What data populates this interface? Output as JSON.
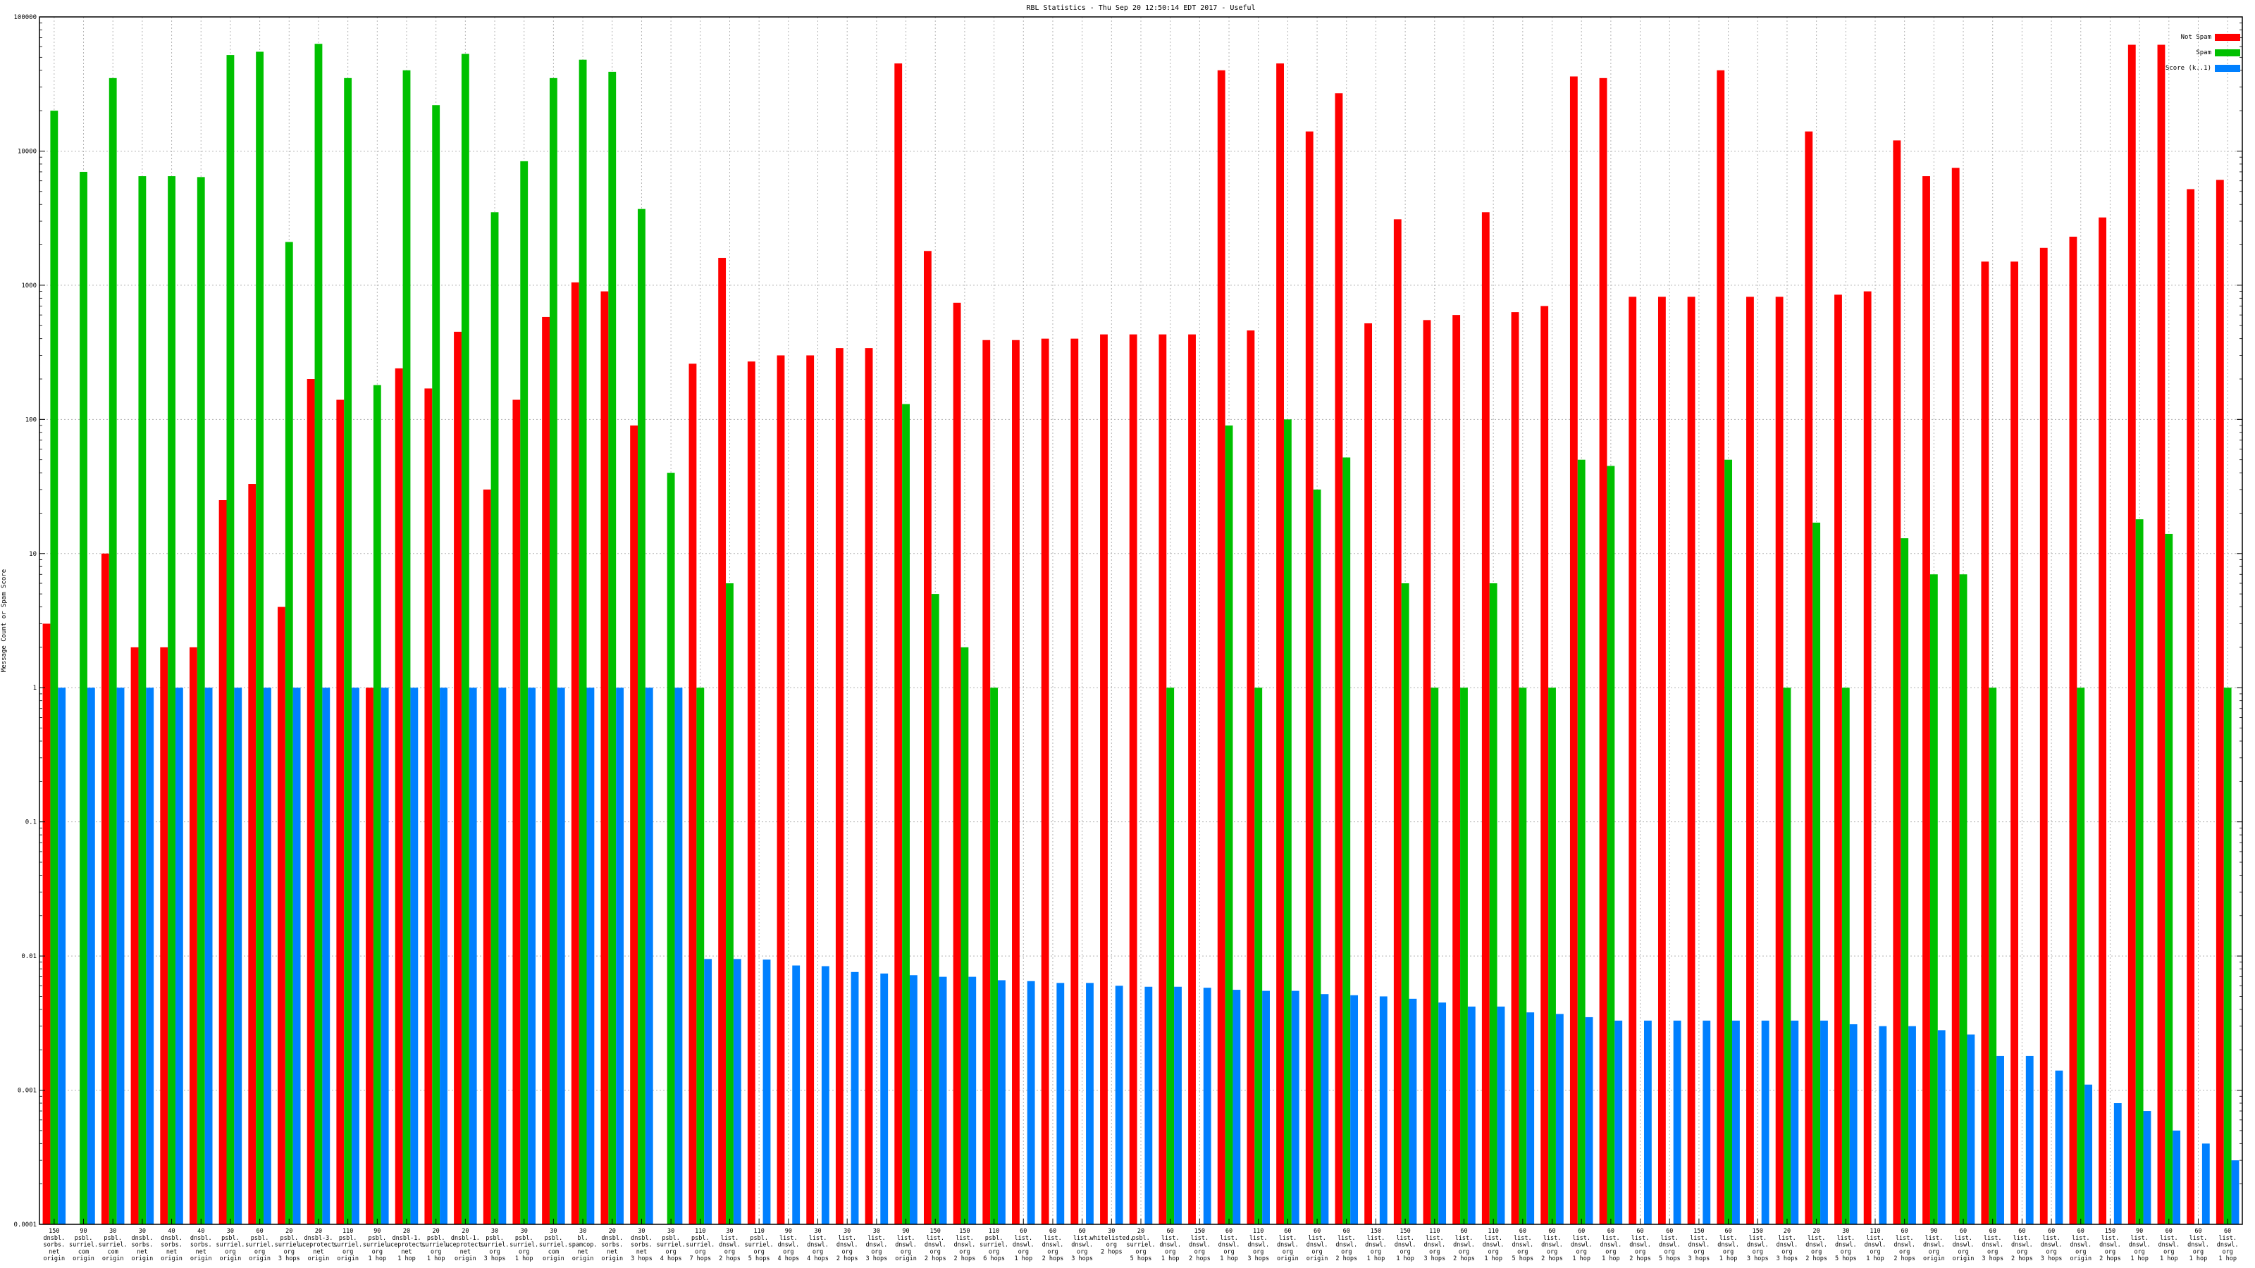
{
  "chart_data": {
    "type": "bar",
    "title": "RBL Statistics - Thu Sep 20 12:50:14 EDT 2017 - Useful",
    "ylabel": "Message Count or Spam Score",
    "xlabel": "",
    "yscale": "log",
    "ylim": [
      0.0001,
      100000
    ],
    "yticks": [
      "0.0001",
      "0.001",
      "0.01",
      "0.1",
      "1",
      "10",
      "100",
      "1000",
      "10000",
      "100000"
    ],
    "grid": true,
    "legend_position": "top-right",
    "colors": {
      "not_spam": "#ff0000",
      "spam": "#00c000",
      "score": "#0080ff"
    },
    "series": [
      {
        "name": "Not Spam",
        "values": [
          3,
          null,
          10,
          2,
          2,
          2,
          25,
          33,
          4,
          200,
          140,
          1,
          240,
          170,
          450,
          30,
          140,
          580,
          1050,
          900,
          90,
          null,
          260,
          1600,
          270,
          300,
          300,
          340,
          340,
          45000,
          1800,
          740,
          390,
          390,
          400,
          400,
          430,
          430,
          430,
          430,
          40000,
          460,
          45000,
          14000,
          27000,
          520,
          3100,
          550,
          600,
          3500,
          630,
          700,
          36000,
          35000,
          820,
          820,
          820,
          40000,
          820,
          820,
          14000,
          850,
          900,
          12000,
          6500,
          7500,
          1500,
          1500,
          1900,
          2300,
          3200,
          62000,
          62000,
          5200,
          6100
        ]
      },
      {
        "name": "Spam",
        "values": [
          20000,
          7000,
          35000,
          6500,
          6500,
          6400,
          52000,
          55000,
          2100,
          63000,
          35000,
          180,
          40000,
          22000,
          53000,
          3500,
          8400,
          35000,
          48000,
          39000,
          3700,
          40,
          1,
          6,
          null,
          null,
          null,
          null,
          null,
          130,
          5,
          2,
          1,
          null,
          null,
          null,
          null,
          null,
          1,
          null,
          90,
          1,
          100,
          30,
          52,
          null,
          6,
          1,
          1,
          6,
          1,
          1,
          50,
          45,
          null,
          null,
          null,
          50,
          null,
          1,
          17,
          1,
          null,
          13,
          7,
          7,
          1,
          null,
          null,
          1,
          null,
          18,
          14,
          null,
          1
        ]
      },
      {
        "name": "Score (k..1)",
        "values": [
          1,
          1,
          1,
          1,
          1,
          1,
          1,
          1,
          1,
          1,
          1,
          1,
          1,
          1,
          1,
          1,
          1,
          1,
          1,
          1,
          1,
          1,
          0.0095,
          0.0095,
          0.0094,
          0.0085,
          0.0084,
          0.0076,
          0.0074,
          0.0072,
          0.007,
          0.007,
          0.0066,
          0.0065,
          0.0063,
          0.0063,
          0.006,
          0.0059,
          0.0059,
          0.0058,
          0.0056,
          0.0055,
          0.0055,
          0.0052,
          0.0051,
          0.005,
          0.0048,
          0.0045,
          0.0042,
          0.0042,
          0.0038,
          0.0037,
          0.0035,
          0.0033,
          0.0033,
          0.0033,
          0.0033,
          0.0033,
          0.0033,
          0.0033,
          0.0033,
          0.0031,
          0.003,
          0.003,
          0.0028,
          0.0026,
          0.0018,
          0.0018,
          0.0014,
          0.0011,
          0.0008,
          0.0007,
          0.0005,
          0.0004,
          0.0003
        ]
      }
    ],
    "categories": [
      [
        "150",
        "dnsbl.",
        "sorbs.",
        "net",
        "origin"
      ],
      [
        "90",
        "psbl.",
        "surriel.",
        "com",
        "origin"
      ],
      [
        "30",
        "psbl.",
        "surriel.",
        "com",
        "origin"
      ],
      [
        "30",
        "dnsbl.",
        "sorbs.",
        "net",
        "origin"
      ],
      [
        "40",
        "dnsbl.",
        "sorbs.",
        "net",
        "origin"
      ],
      [
        "40",
        "dnsbl.",
        "sorbs.",
        "net",
        "origin"
      ],
      [
        "30",
        "psbl.",
        "surriel.",
        "org",
        "origin"
      ],
      [
        "60",
        "psbl.",
        "surriel.",
        "org",
        "origin"
      ],
      [
        "20",
        "psbl.",
        "surriel.",
        "org",
        "3 hops"
      ],
      [
        "20",
        "dnsbl-3.",
        "uceprotect.",
        "net",
        "origin"
      ],
      [
        "110",
        "psbl.",
        "surriel.",
        "org",
        "origin"
      ],
      [
        "90",
        "psbl.",
        "surriel.",
        "org",
        "1 hop"
      ],
      [
        "20",
        "dnsbl-1.",
        "uceprotect.",
        "net",
        "1 hop"
      ],
      [
        "20",
        "psbl.",
        "surriel.",
        "org",
        "1 hop"
      ],
      [
        "20",
        "dnsbl-1.",
        "uceprotect.",
        "net",
        "origin"
      ],
      [
        "30",
        "psbl.",
        "surriel.",
        "org",
        "3 hops"
      ],
      [
        "30",
        "psbl.",
        "surriel.",
        "org",
        "1 hop"
      ],
      [
        "30",
        "psbl.",
        "surriel.",
        "com",
        "origin"
      ],
      [
        "30",
        "bl.",
        "spamcop.",
        "net",
        "origin"
      ],
      [
        "20",
        "dnsbl.",
        "sorbs.",
        "net",
        "origin"
      ],
      [
        "30",
        "dnsbl.",
        "sorbs.",
        "net",
        "3 hops"
      ],
      [
        "30",
        "psbl.",
        "surriel.",
        "org",
        "4 hops"
      ],
      [
        "110",
        "psbl.",
        "surriel.",
        "org",
        "7 hops"
      ],
      [
        "30",
        "list.",
        "dnswl.",
        "org",
        "2 hops"
      ],
      [
        "110",
        "psbl.",
        "surriel.",
        "org",
        "5 hops"
      ],
      [
        "90",
        "list.",
        "dnswl.",
        "org",
        "4 hops"
      ],
      [
        "30",
        "list.",
        "dnswl.",
        "org",
        "4 hops"
      ],
      [
        "30",
        "list.",
        "dnswl.",
        "org",
        "2 hops"
      ],
      [
        "30",
        "list.",
        "dnswl.",
        "org",
        "3 hops"
      ],
      [
        "90",
        "list.",
        "dnswl.",
        "org",
        "origin"
      ],
      [
        "150",
        "list.",
        "dnswl.",
        "org",
        "2 hops"
      ],
      [
        "150",
        "list.",
        "dnswl.",
        "org",
        "2 hops"
      ],
      [
        "110",
        "psbl.",
        "surriel.",
        "org",
        "6 hops"
      ],
      [
        "60",
        "list.",
        "dnswl.",
        "org",
        "1 hop"
      ],
      [
        "60",
        "list.",
        "dnswl.",
        "org",
        "2 hops"
      ],
      [
        "60",
        "list.",
        "dnswl.",
        "org",
        "3 hops"
      ],
      [
        "30",
        "whitelisted.",
        "org",
        "2 hops"
      ],
      [
        "20",
        "psbl.",
        "surriel.",
        "org",
        "5 hops"
      ],
      [
        "60",
        "list.",
        "dnswl.",
        "org",
        "1 hop"
      ],
      [
        "150",
        "list.",
        "dnswl.",
        "org",
        "2 hops"
      ],
      [
        "60",
        "list.",
        "dnswl.",
        "org",
        "1 hop"
      ],
      [
        "110",
        "list.",
        "dnswl.",
        "org",
        "3 hops"
      ],
      [
        "60",
        "list.",
        "dnswl.",
        "org",
        "origin"
      ],
      [
        "60",
        "list.",
        "dnswl.",
        "org",
        "origin"
      ],
      [
        "60",
        "list.",
        "dnswl.",
        "org",
        "2 hops"
      ],
      [
        "150",
        "list.",
        "dnswl.",
        "org",
        "1 hop"
      ],
      [
        "150",
        "list.",
        "dnswl.",
        "org",
        "1 hop"
      ],
      [
        "110",
        "list.",
        "dnswl.",
        "org",
        "3 hops"
      ],
      [
        "60",
        "list.",
        "dnswl.",
        "org",
        "2 hops"
      ],
      [
        "110",
        "list.",
        "dnswl.",
        "org",
        "1 hop"
      ],
      [
        "60",
        "list.",
        "dnswl.",
        "org",
        "5 hops"
      ],
      [
        "60",
        "list.",
        "dnswl.",
        "org",
        "2 hops"
      ],
      [
        "60",
        "list.",
        "dnswl.",
        "org",
        "1 hop"
      ],
      [
        "60",
        "list.",
        "dnswl.",
        "org",
        "1 hop"
      ],
      [
        "60",
        "list.",
        "dnswl.",
        "org",
        "2 hops"
      ],
      [
        "60",
        "list.",
        "dnswl.",
        "org",
        "5 hops"
      ],
      [
        "150",
        "list.",
        "dnswl.",
        "org",
        "3 hops"
      ],
      [
        "60",
        "list.",
        "dnswl.",
        "org",
        "1 hop"
      ],
      [
        "150",
        "list.",
        "dnswl.",
        "org",
        "3 hops"
      ],
      [
        "20",
        "list.",
        "dnswl.",
        "org",
        "3 hops"
      ],
      [
        "20",
        "list.",
        "dnswl.",
        "org",
        "2 hops"
      ],
      [
        "30",
        "list.",
        "dnswl.",
        "org",
        "5 hops"
      ],
      [
        "110",
        "list.",
        "dnswl.",
        "org",
        "1 hop"
      ],
      [
        "60",
        "list.",
        "dnswl.",
        "org",
        "2 hops"
      ],
      [
        "90",
        "list.",
        "dnswl.",
        "org",
        "origin"
      ],
      [
        "60",
        "list.",
        "dnswl.",
        "org",
        "origin"
      ],
      [
        "60",
        "list.",
        "dnswl.",
        "org",
        "3 hops"
      ],
      [
        "60",
        "list.",
        "dnswl.",
        "org",
        "2 hops"
      ],
      [
        "60",
        "list.",
        "dnswl.",
        "org",
        "3 hops"
      ],
      [
        "60",
        "list.",
        "dnswl.",
        "org",
        "origin"
      ],
      [
        "150",
        "list.",
        "dnswl.",
        "org",
        "2 hops"
      ],
      [
        "90",
        "list.",
        "dnswl.",
        "org",
        "1 hop"
      ],
      [
        "60",
        "list.",
        "dnswl.",
        "org",
        "1 hop"
      ],
      [
        "60",
        "list.",
        "dnswl.",
        "org",
        "1 hop"
      ],
      [
        "60",
        "list.",
        "dnswl.",
        "org",
        "1 hop"
      ]
    ]
  }
}
